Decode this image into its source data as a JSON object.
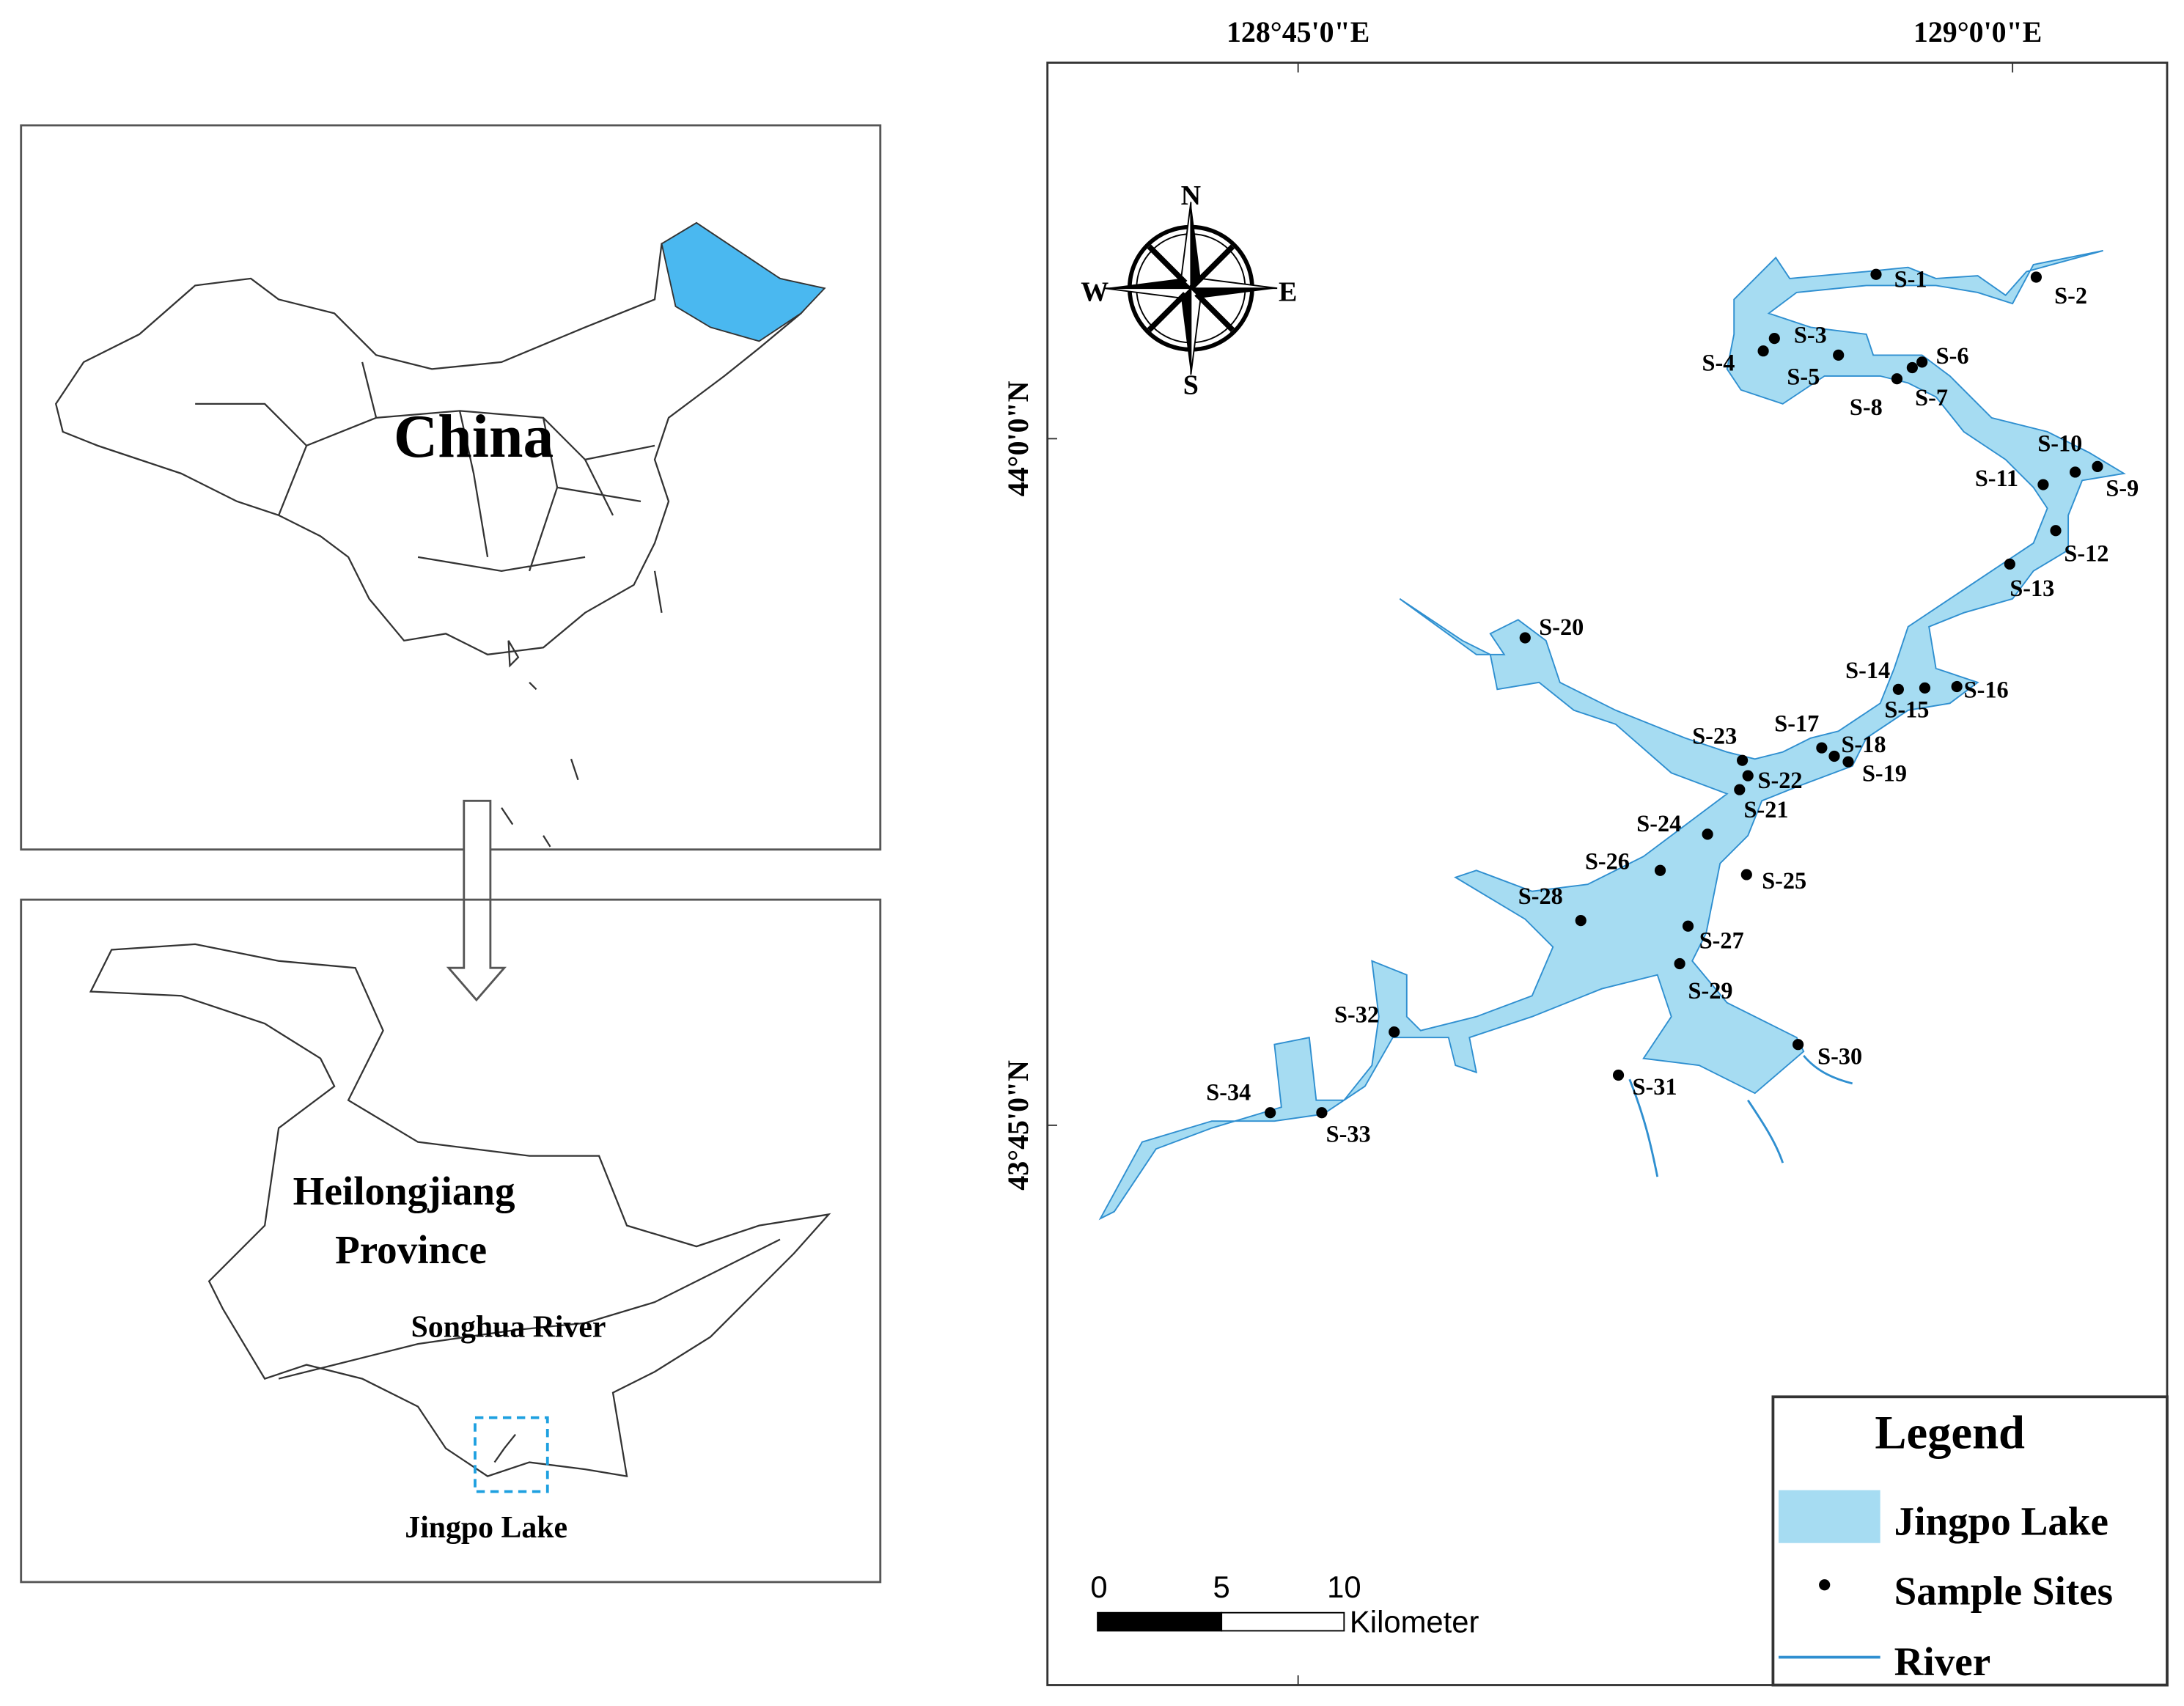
{
  "inset_china": {
    "label": "China"
  },
  "inset_province": {
    "label_line1": "Heilongjiang",
    "label_line2": "Province",
    "river": "Songhua River",
    "lake": "Jingpo Lake"
  },
  "map": {
    "longitude_labels": [
      "128°45'0\"E",
      "129°0'0\"E"
    ],
    "latitude_labels": [
      "44°0'0\"N",
      "43°45'0\"N"
    ],
    "compass": {
      "n": "N",
      "s": "S",
      "e": "E",
      "w": "W"
    },
    "sites": [
      "S-1",
      "S-2",
      "S-3",
      "S-4",
      "S-5",
      "S-6",
      "S-7",
      "S-8",
      "S-9",
      "S-10",
      "S-11",
      "S-12",
      "S-13",
      "S-14",
      "S-15",
      "S-16",
      "S-17",
      "S-18",
      "S-19",
      "S-20",
      "S-21",
      "S-22",
      "S-23",
      "S-24",
      "S-25",
      "S-26",
      "S-27",
      "S-28",
      "S-29",
      "S-30",
      "S-31",
      "S-32",
      "S-33",
      "S-34"
    ]
  },
  "legend": {
    "title": "Legend",
    "items": [
      "Jingpo Lake",
      "Sample Sites",
      "River"
    ]
  },
  "scale_bar": {
    "ticks": [
      0,
      5,
      10
    ],
    "unit": "Kilometer"
  }
}
